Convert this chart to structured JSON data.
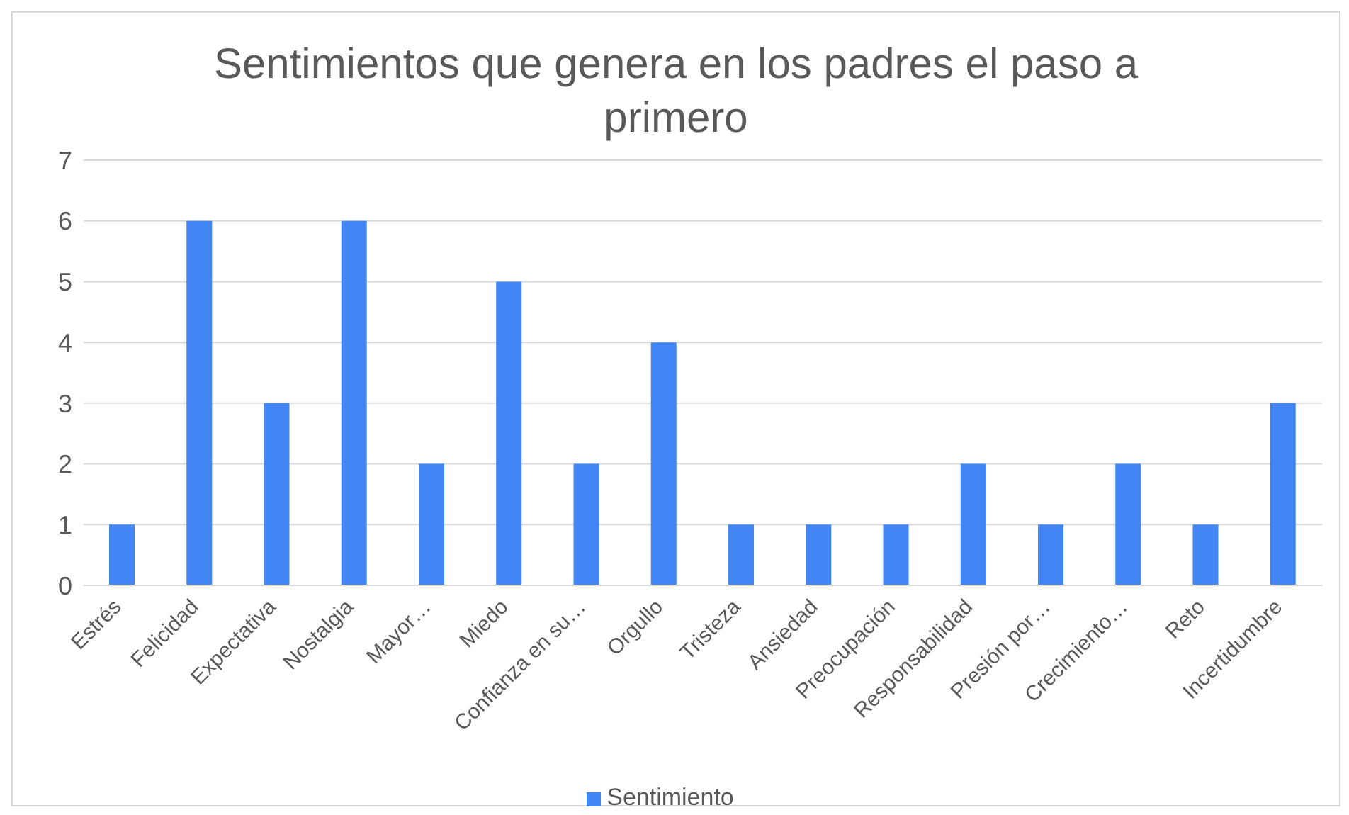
{
  "chart_data": {
    "type": "bar",
    "title": "Sentimientos que genera en los padres el paso a primero",
    "categories": [
      "Estrés",
      "Felicidad",
      "Expectativa",
      "Nostalgia",
      "Mayor…",
      "Miedo",
      "Confianza en su…",
      "Orgullo",
      "Tristeza",
      "Ansiedad",
      "Preocupación",
      "Responsabilidad",
      "Presión por…",
      "Crecimiento…",
      "Reto",
      "Incertidumbre"
    ],
    "series": [
      {
        "name": "Sentimiento",
        "color": "#4285f4",
        "values": [
          1,
          6,
          3,
          6,
          2,
          5,
          2,
          4,
          1,
          1,
          1,
          2,
          1,
          2,
          1,
          3
        ]
      }
    ],
    "ylim": [
      0,
      7
    ],
    "yticks": [
      0,
      1,
      2,
      3,
      4,
      5,
      6,
      7
    ],
    "grid": "y",
    "legend": "bottom"
  }
}
